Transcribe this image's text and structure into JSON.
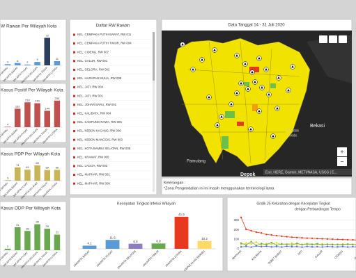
{
  "chart_data": [
    {
      "type": "bar",
      "title": "W Rawan Per Wilayah Kota",
      "categories": [
        "KEPULAUAN SERIBU",
        "JAKARTA BARAT",
        "JAKARTA PUSAT",
        "JAKARTA SELATAN",
        "JAKARTA TIMUR",
        "JAKARTA UTARA"
      ],
      "values": [
        3,
        6,
        2,
        9,
        72,
        11
      ],
      "colors": [
        "#5b9bd5",
        "#5b9bd5",
        "#5b9bd5",
        "#5b9bd5",
        "#2b3f5c",
        "#5b9bd5"
      ],
      "ylim": [
        0,
        80
      ]
    },
    {
      "type": "bar",
      "title": "Kasus Positif Per Wilayah Kota",
      "categories": [
        "KEPULAUAN SERIBU",
        "JAKARTA BARAT",
        "JAKARTA PUSAT",
        "JAKARTA SELATAN",
        "JAKARTA TIMUR",
        "JAKARTA UTARA"
      ],
      "values": [
        4,
        162,
        218,
        210,
        144,
        233
      ],
      "colors": [
        "#c0504d",
        "#c0504d",
        "#c0504d",
        "#c0504d",
        "#c0504d",
        "#c0504d"
      ],
      "ylim": [
        0,
        250
      ]
    },
    {
      "type": "bar",
      "title": "Kasus PDP Per Wilayah Kota",
      "categories": [
        "KEPULAUAN SERIBU",
        "JAKARTA BARAT",
        "JAKARTA PUSAT",
        "JAKARTA SELATAN",
        "JAKARTA TIMUR",
        "JAKARTA UTARA"
      ],
      "values": [
        3,
        74,
        61,
        85,
        59,
        60
      ],
      "colors": [
        "#c9b458",
        "#c9b458",
        "#c9b458",
        "#c9b458",
        "#c9b458",
        "#c9b458"
      ],
      "ylim": [
        0,
        100
      ]
    },
    {
      "type": "bar",
      "title": "Kasus ODP Per Wilayah Kota",
      "categories": [
        "KEPULAUAN SERIBU",
        "JAKARTA BARAT",
        "JAKARTA PUSAT",
        "JAKARTA SELATAN",
        "JAKARTA TIMUR",
        "JAKARTA UTARA"
      ],
      "values": [
        2,
        31,
        26,
        35,
        29,
        21
      ],
      "colors": [
        "#6aa84f",
        "#6aa84f",
        "#6aa84f",
        "#6aa84f",
        "#6aa84f",
        "#6aa84f"
      ],
      "ylim": [
        0,
        45
      ]
    },
    {
      "type": "bar",
      "title": "Kecepatan Tingkat Infeksi Wilayah",
      "categories": [
        "JAKARTA BARAT",
        "JAKARTA PUSAT",
        "JAKARTA SELATAN",
        "JAKARTA TIMUR",
        "JAKARTA UTARA",
        "KEPULAUAN SERIBU"
      ],
      "values": [
        4.1,
        11.5,
        6.6,
        6.9,
        41.5,
        10.2
      ],
      "colors": [
        "#5b9bd5",
        "#5b9bd5",
        "#8e7cc3",
        "#6aa84f",
        "#e8381e",
        "#ffd966"
      ],
      "ylim": [
        0,
        45
      ]
    },
    {
      "type": "line",
      "title": "Grafik 25 Kelurahan dengan Kecepatan Tingkat",
      "subtitle": "dengan Perbandingan Tempo",
      "categories": [
        "MAPHAR",
        null,
        null,
        null,
        "KALIBATA",
        null,
        null,
        null,
        "TEBET BARAT",
        null,
        null,
        null,
        "JATI",
        null,
        null,
        null,
        "GALUR",
        null,
        null,
        null,
        "CIDENG",
        null,
        null,
        null,
        "GELORA"
      ],
      "series": [
        {
          "color": "#e8381e",
          "values": [
            330,
            205,
            190,
            175,
            165,
            150,
            145,
            138,
            132,
            127,
            122,
            118,
            115,
            112,
            110,
            108,
            105,
            103,
            101,
            99,
            97,
            95,
            94,
            92,
            90
          ]
        },
        {
          "color": "#e6d200",
          "values": [
            45,
            60,
            50,
            70,
            40,
            55,
            48,
            62,
            45,
            50,
            58,
            42,
            47,
            55,
            50,
            44,
            52,
            46,
            49,
            43,
            51,
            45,
            48,
            44,
            46
          ]
        },
        {
          "color": "#6aa84f",
          "values": [
            60,
            40,
            75,
            35,
            55,
            45,
            65,
            38,
            52,
            48,
            40,
            58,
            43,
            50,
            46,
            53,
            41,
            49,
            44,
            47,
            42,
            50,
            45,
            43,
            48
          ]
        },
        {
          "color": "#4a6fd4",
          "values": [
            20,
            25,
            18,
            30,
            22,
            27,
            20,
            24,
            19,
            26,
            21,
            23,
            18,
            25,
            20,
            22,
            19,
            24,
            21,
            20,
            23,
            19,
            22,
            20,
            21
          ]
        }
      ],
      "ylim": [
        0,
        350
      ],
      "yticks": [
        0,
        100,
        200,
        300
      ],
      "grid": true
    }
  ],
  "rw_list": {
    "title": "Daftar RW Rawan",
    "items": [
      "KEL. CEMPAKA PUTIH BARAT, RW 011",
      "KEL. CEMPAKA PUTIH TIMUR, RW 004",
      "KEL. CIDENG, RW 007",
      "KEL. GALUR, RW 001",
      "KEL. GELORA, RW 002",
      "KEL. HARAPAN MULIA, RW 008",
      "KEL. JATI, RW 004",
      "KEL. JATI, RW 001",
      "KEL. JOHAR BARU, RW 001",
      "KEL. KALIBATA, RW 004",
      "KEL. KAMPUNG RAWA, RW 006",
      "KEL. KEBON KACANG, RW 006",
      "KEL. KEBON MANGGIS, RW 003",
      "KEL. KOTA BAMBU SELATAN, RW 005",
      "KEL. KRAMAT, RW 005",
      "KEL. LAGOA, RW 003",
      "KEL. MAPHAR, RW 001",
      "KEL. MAPHAR, RW 009"
    ]
  },
  "map": {
    "header": "Data Tanggal 14 - 31 Juli 2020",
    "labels": [
      "Bekasi",
      "Pondok",
      "Gede",
      "Pamulang",
      "Depok"
    ],
    "attribution": "Esri, HERE, Garmin, METI/NASA, USGS | E...",
    "zoom_in": "+",
    "zoom_out": "−"
  },
  "note": {
    "title": "Keterangan :",
    "text": "*Zona Pengendalian ini ini masih menggunakan terminologi lama"
  }
}
